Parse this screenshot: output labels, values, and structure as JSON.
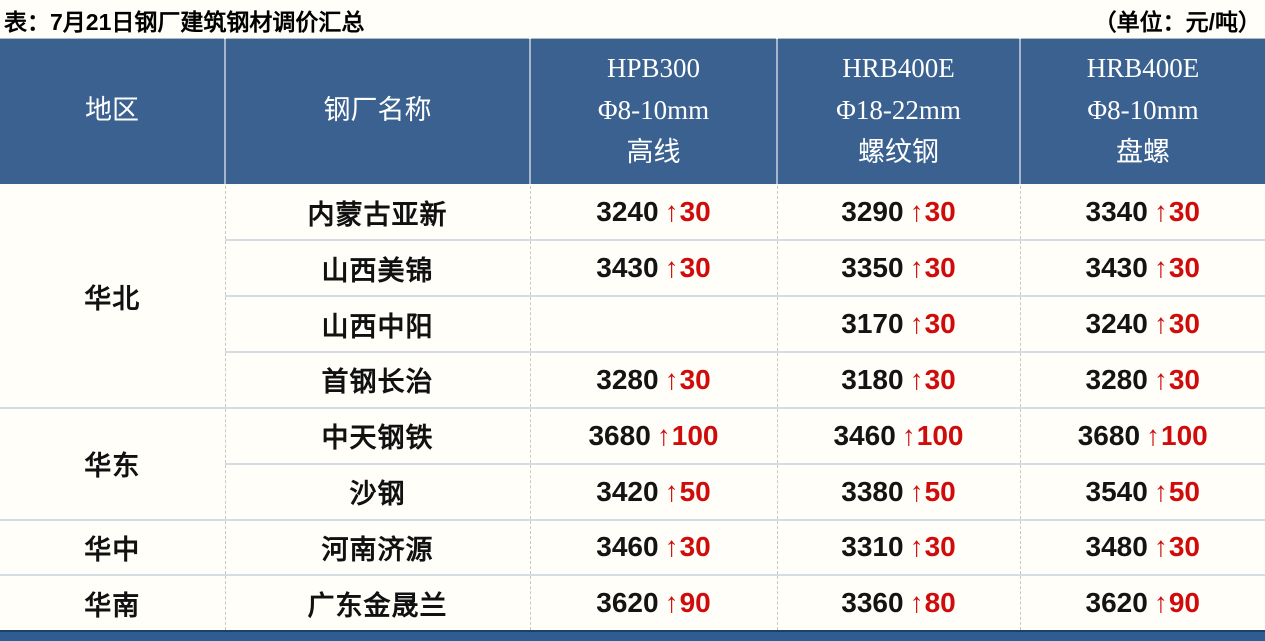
{
  "page": {
    "title": "表：7月21日钢厂建筑钢材调价汇总",
    "unit": "（单位：元/吨）"
  },
  "colors": {
    "header_bg": "#3A618F",
    "header_text": "#FFFFFF",
    "price_text": "#141414",
    "up_red": "#D00B0B",
    "bottom_bar_blue": "#2E5D94",
    "page_bg": "#FFFEF8"
  },
  "icons": {
    "up_arrow": "↑"
  },
  "table": {
    "columns": [
      {
        "lines": [
          "地区"
        ]
      },
      {
        "lines": [
          "钢厂名称"
        ]
      },
      {
        "lines": [
          "HPB300",
          "Φ8-10mm",
          "高线"
        ]
      },
      {
        "lines": [
          "HRB400E",
          "Φ18-22mm",
          "螺纹钢"
        ]
      },
      {
        "lines": [
          "HRB400E",
          "Φ8-10mm",
          "盘螺"
        ]
      }
    ],
    "groups": [
      {
        "region": "华北",
        "mills": [
          {
            "name": "内蒙古亚新",
            "prices": [
              {
                "value": "3240",
                "change": "30"
              },
              {
                "value": "3290",
                "change": "30"
              },
              {
                "value": "3340",
                "change": "30"
              }
            ]
          },
          {
            "name": "山西美锦",
            "prices": [
              {
                "value": "3430",
                "change": "30"
              },
              {
                "value": "3350",
                "change": "30"
              },
              {
                "value": "3430",
                "change": "30"
              }
            ]
          },
          {
            "name": "山西中阳",
            "prices": [
              null,
              {
                "value": "3170",
                "change": "30"
              },
              {
                "value": "3240",
                "change": "30"
              }
            ]
          },
          {
            "name": "首钢长治",
            "prices": [
              {
                "value": "3280",
                "change": "30"
              },
              {
                "value": "3180",
                "change": "30"
              },
              {
                "value": "3280",
                "change": "30"
              }
            ]
          }
        ]
      },
      {
        "region": "华东",
        "mills": [
          {
            "name": "中天钢铁",
            "prices": [
              {
                "value": "3680",
                "change": "100"
              },
              {
                "value": "3460",
                "change": "100"
              },
              {
                "value": "3680",
                "change": "100"
              }
            ]
          },
          {
            "name": "沙钢",
            "prices": [
              {
                "value": "3420",
                "change": "50"
              },
              {
                "value": "3380",
                "change": "50"
              },
              {
                "value": "3540",
                "change": "50"
              }
            ]
          }
        ]
      },
      {
        "region": "华中",
        "mills": [
          {
            "name": "河南济源",
            "prices": [
              {
                "value": "3460",
                "change": "30"
              },
              {
                "value": "3310",
                "change": "30"
              },
              {
                "value": "3480",
                "change": "30"
              }
            ]
          }
        ]
      },
      {
        "region": "华南",
        "mills": [
          {
            "name": "广东金晟兰",
            "prices": [
              {
                "value": "3620",
                "change": "90"
              },
              {
                "value": "3360",
                "change": "80"
              },
              {
                "value": "3620",
                "change": "90"
              }
            ]
          }
        ]
      }
    ]
  },
  "chart_data": {
    "type": "table",
    "title": "表：7月21日钢厂建筑钢材调价汇总",
    "unit": "（单位：元/吨）",
    "columns": [
      "地区",
      "钢厂名称",
      "HPB300 Φ8-10mm 高线",
      "HRB400E Φ18-22mm 螺纹钢",
      "HRB400E Φ8-10mm 盘螺"
    ],
    "rows": [
      [
        "华北",
        "内蒙古亚新",
        "3240 ↑30",
        "3290 ↑30",
        "3340 ↑30"
      ],
      [
        "华北",
        "山西美锦",
        "3430 ↑30",
        "3350 ↑30",
        "3430 ↑30"
      ],
      [
        "华北",
        "山西中阳",
        "",
        "3170 ↑30",
        "3240 ↑30"
      ],
      [
        "华北",
        "首钢长治",
        "3280 ↑30",
        "3180 ↑30",
        "3280 ↑30"
      ],
      [
        "华东",
        "中天钢铁",
        "3680 ↑100",
        "3460 ↑100",
        "3680 ↑100"
      ],
      [
        "华东",
        "沙钢",
        "3420 ↑50",
        "3380 ↑50",
        "3540 ↑50"
      ],
      [
        "华中",
        "河南济源",
        "3460 ↑30",
        "3310 ↑30",
        "3480 ↑30"
      ],
      [
        "华南",
        "广东金晟兰",
        "3620 ↑90",
        "3360 ↑80",
        "3620 ↑90"
      ]
    ]
  }
}
